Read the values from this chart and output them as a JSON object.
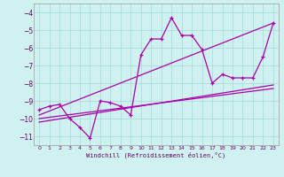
{
  "xlabel": "Windchill (Refroidissement éolien,°C)",
  "bg_color": "#cff1ef",
  "grid_color": "#aadddd",
  "line_color": "#aa00aa",
  "xlim": [
    -0.5,
    23.5
  ],
  "ylim": [
    -11.5,
    -3.5
  ],
  "yticks": [
    -11,
    -10,
    -9,
    -8,
    -7,
    -6,
    -5,
    -4
  ],
  "xticks": [
    0,
    1,
    2,
    3,
    4,
    5,
    6,
    7,
    8,
    9,
    10,
    11,
    12,
    13,
    14,
    15,
    16,
    17,
    18,
    19,
    20,
    21,
    22,
    23
  ],
  "series1_x": [
    0,
    1,
    2,
    3,
    4,
    5,
    6,
    7,
    8,
    9,
    10,
    11,
    12,
    13,
    14,
    15,
    16,
    17,
    18,
    19,
    20,
    21,
    22,
    23
  ],
  "series1_y": [
    -9.5,
    -9.3,
    -9.2,
    -10.0,
    -10.5,
    -11.1,
    -9.0,
    -9.1,
    -9.3,
    -9.8,
    -6.4,
    -5.5,
    -5.5,
    -4.3,
    -5.3,
    -5.3,
    -6.1,
    -8.0,
    -7.5,
    -7.7,
    -7.7,
    -7.7,
    -6.5,
    -4.6
  ],
  "series2_x": [
    0,
    23
  ],
  "series2_y": [
    -9.8,
    -4.6
  ],
  "series3_x": [
    0,
    23
  ],
  "series3_y": [
    -10.2,
    -8.1
  ],
  "series4_x": [
    0,
    23
  ],
  "series4_y": [
    -10.0,
    -8.3
  ]
}
